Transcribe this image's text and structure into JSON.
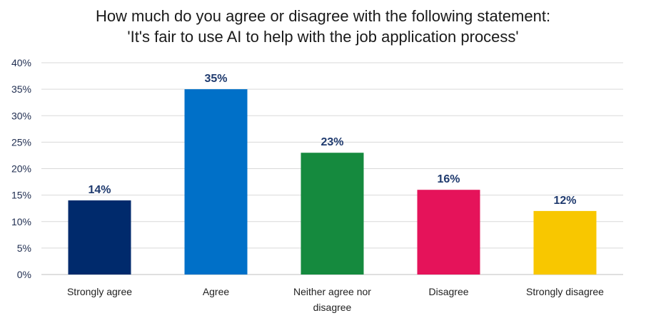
{
  "chart_data": {
    "type": "bar",
    "title_lines": [
      "How much do you agree or disagree with the following statement:",
      "'It's fair to use AI to help with the job application process'"
    ],
    "categories": [
      "Strongly agree",
      "Agree",
      "Neither agree nor disagree",
      "Disagree",
      "Strongly disagree"
    ],
    "category_lines": [
      [
        "Strongly agree"
      ],
      [
        "Agree"
      ],
      [
        "Neither agree nor",
        "disagree"
      ],
      [
        "Disagree"
      ],
      [
        "Strongly disagree"
      ]
    ],
    "values": [
      14,
      35,
      23,
      16,
      12
    ],
    "data_labels": [
      "14%",
      "35%",
      "23%",
      "16%",
      "12%"
    ],
    "colors": [
      "#002a6c",
      "#0070c8",
      "#158a3e",
      "#e5135a",
      "#f8c700"
    ],
    "ylim": [
      0,
      40
    ],
    "yticks": [
      0,
      5,
      10,
      15,
      20,
      25,
      30,
      35,
      40
    ],
    "ytick_labels": [
      "0%",
      "5%",
      "10%",
      "15%",
      "20%",
      "25%",
      "30%",
      "35%",
      "40%"
    ],
    "xlabel": "",
    "ylabel": "",
    "grid": true,
    "legend": "none"
  }
}
